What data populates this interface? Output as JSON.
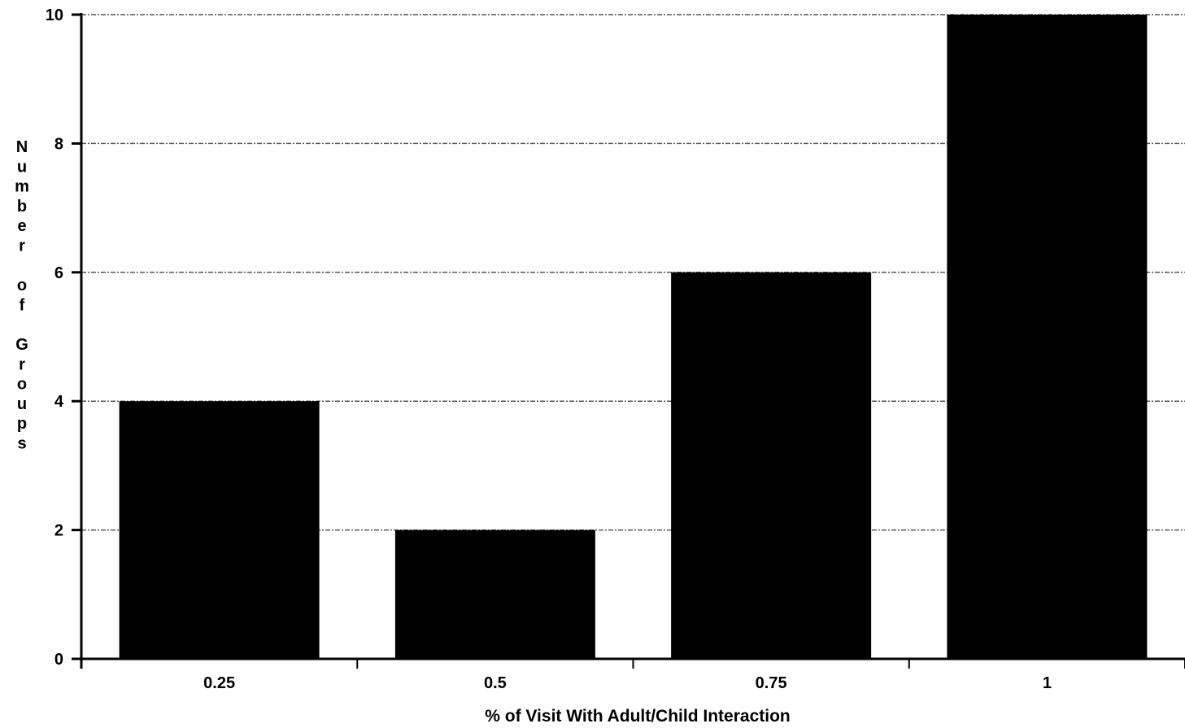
{
  "chart_data": {
    "type": "bar",
    "categories": [
      "0.25",
      "0.5",
      "0.75",
      "1"
    ],
    "values": [
      4,
      2,
      6,
      10
    ],
    "title": "",
    "xlabel": "% of Visit With Adult/Child Interaction",
    "ylabel": "Number of Groups",
    "ylim": [
      0,
      10
    ],
    "yticks": [
      "0",
      "2",
      "4",
      "6",
      "8",
      "10"
    ],
    "grid": true,
    "bar_color": "#000000",
    "grid_color": "#555555"
  }
}
